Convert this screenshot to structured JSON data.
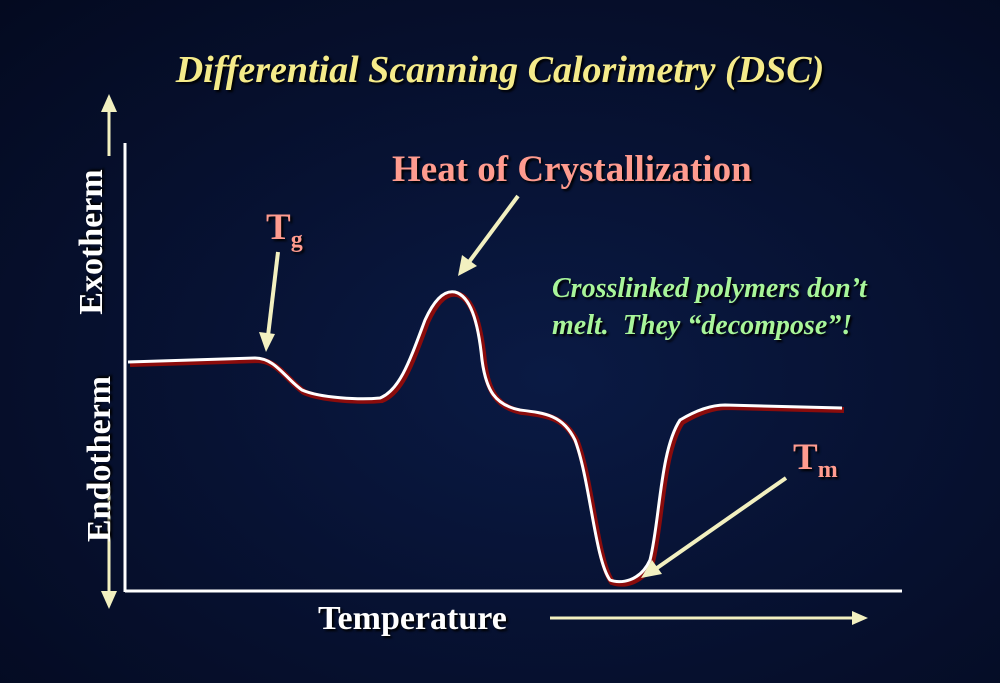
{
  "title": "Differential Scanning Calorimetry (DSC)",
  "colors": {
    "title": "#f5eb8a",
    "label_pink": "#ff9b8f",
    "note_green": "#a8f59a",
    "axis": "#ffffff",
    "arrow": "#f2f0c0",
    "curve": "#ffffff",
    "curve_shadow": "#8a0c0c"
  },
  "labels": {
    "crystallization": "Heat of Crystallization",
    "tg_main": "T",
    "tg_sub": "g",
    "tm_main": "T",
    "tm_sub": "m"
  },
  "note": {
    "line1": "Crosslinked polymers don’t",
    "line2": "melt.  They “decompose”!"
  },
  "axes": {
    "x_label": "Temperature",
    "y_label_up": "Exotherm",
    "y_label_down": "Endotherm"
  },
  "icons": {
    "temperature_arrow": "arrow-right-icon",
    "exo_arrow": "arrow-up-icon",
    "endo_arrow": "arrow-down-icon"
  }
}
